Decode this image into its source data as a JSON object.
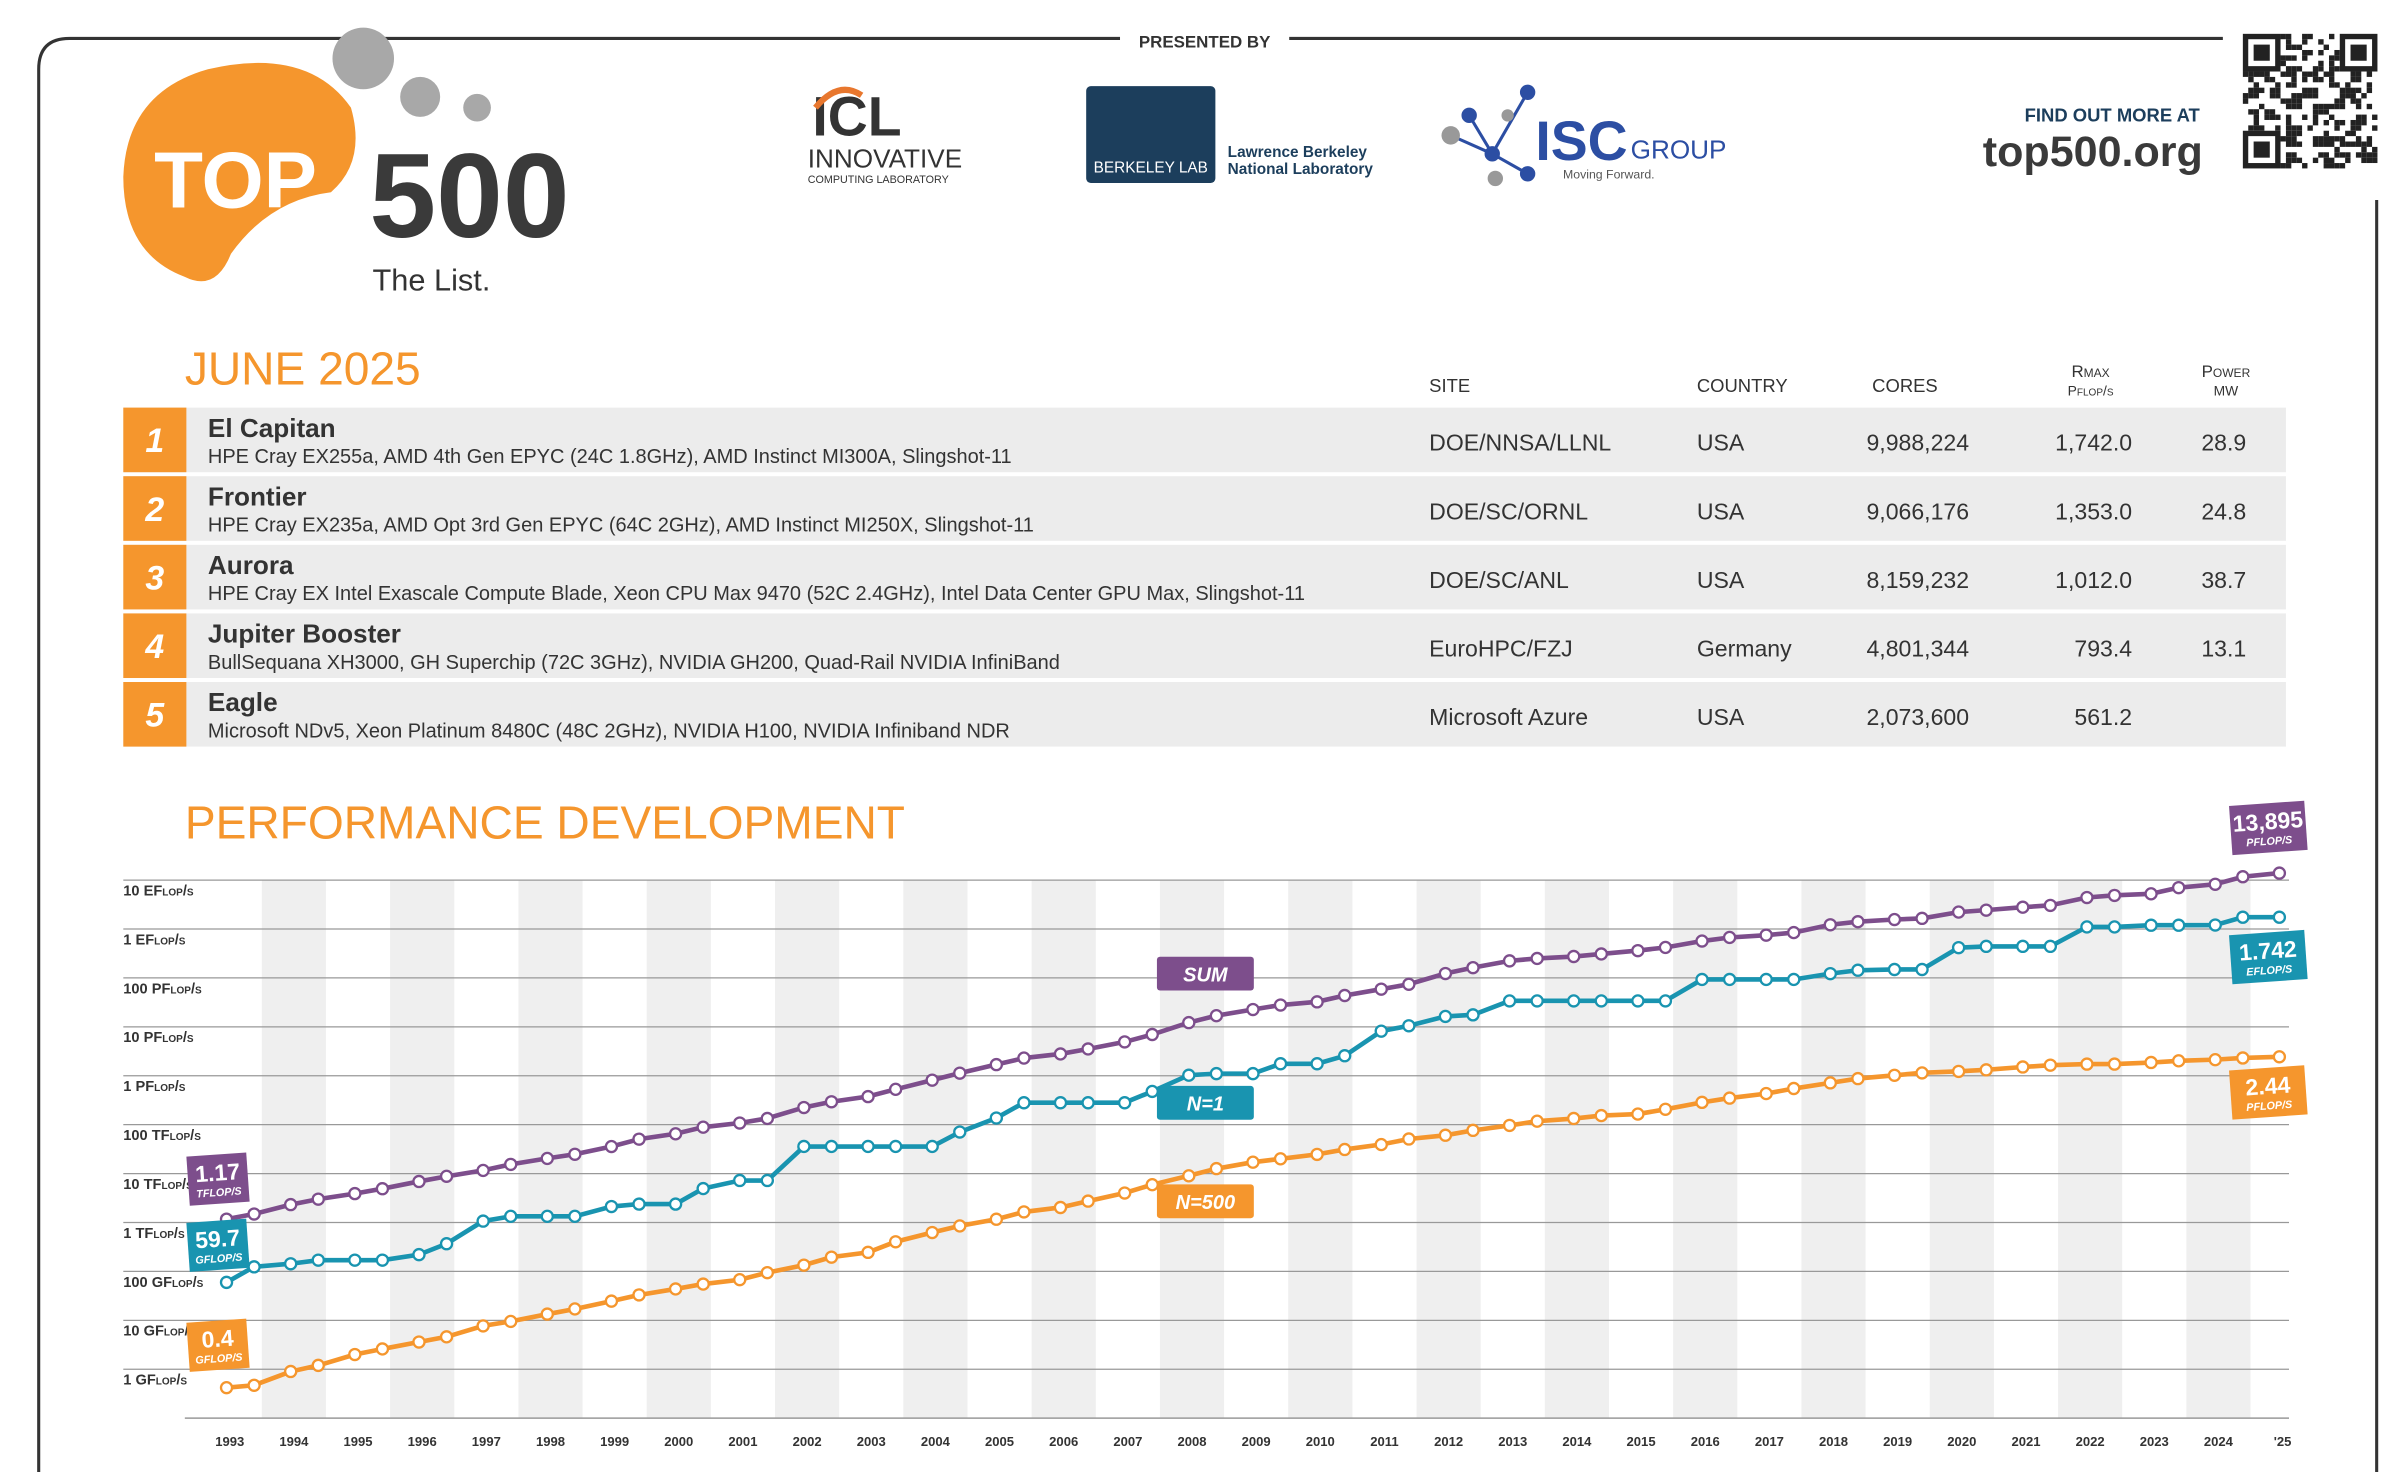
{
  "header": {
    "presented_by": "PRESENTED BY",
    "logo_top": "TOP",
    "logo_500": "500",
    "logo_tagline": "The List.",
    "icl": "ICL",
    "icl_line1": "INNOVATIVE",
    "icl_line2": "COMPUTING LABORATORY",
    "berkeley": "BERKELEY LAB",
    "berkeley_line1": "Lawrence Berkeley",
    "berkeley_line2": "National Laboratory",
    "isc": "ISC",
    "isc_group": "GROUP",
    "isc_tagline": "Moving Forward.",
    "find_out": "FIND OUT MORE AT",
    "url": "top500.org"
  },
  "list_title": "JUNE 2025",
  "table": {
    "columns": [
      {
        "label": "SITE"
      },
      {
        "label": "COUNTRY"
      },
      {
        "label": "CORES"
      },
      {
        "label": "Rmax",
        "unit": "Pflop/s"
      },
      {
        "label": "Power",
        "unit": "MW"
      }
    ],
    "rows": [
      {
        "rank": "1",
        "name": "El Capitan",
        "system": "HPE Cray EX255a, AMD 4th Gen EPYC (24C 1.8GHz), AMD Instinct MI300A, Slingshot-11",
        "site": "DOE/NNSA/LLNL",
        "country": "USA",
        "cores": "9,988,224",
        "rmax": "1,742.0",
        "power": "28.9"
      },
      {
        "rank": "2",
        "name": "Frontier",
        "system": "HPE Cray EX235a, AMD Opt 3rd Gen EPYC (64C 2GHz), AMD Instinct MI250X, Slingshot-11",
        "site": "DOE/SC/ORNL",
        "country": "USA",
        "cores": "9,066,176",
        "rmax": "1,353.0",
        "power": "24.8"
      },
      {
        "rank": "3",
        "name": "Aurora",
        "system": "HPE Cray EX Intel Exascale Compute Blade, Xeon CPU Max 9470 (52C 2.4GHz), Intel Data Center GPU Max, Slingshot-11",
        "site": "DOE/SC/ANL",
        "country": "USA",
        "cores": "8,159,232",
        "rmax": "1,012.0",
        "power": "38.7"
      },
      {
        "rank": "4",
        "name": "Jupiter Booster",
        "system": "BullSequana XH3000, GH Superchip (72C 3GHz), NVIDIA GH200, Quad-Rail NVIDIA InfiniBand",
        "site": "EuroHPC/FZJ",
        "country": "Germany",
        "cores": "4,801,344",
        "rmax": "793.4",
        "power": "13.1"
      },
      {
        "rank": "5",
        "name": "Eagle",
        "system": "Microsoft NDv5, Xeon Platinum 8480C (48C 2GHz), NVIDIA H100, NVIDIA Infiniband NDR",
        "site": "Microsoft Azure",
        "country": "USA",
        "cores": "2,073,600",
        "rmax": "561.2",
        "power": null
      }
    ]
  },
  "chart_data": {
    "type": "line",
    "title": "PERFORMANCE DEVELOPMENT",
    "log_scale": true,
    "grid": true,
    "x": [
      1993.45,
      1993.88,
      1994.45,
      1994.88,
      1995.45,
      1995.88,
      1996.45,
      1996.88,
      1997.45,
      1997.88,
      1998.45,
      1998.88,
      1999.45,
      1999.88,
      2000.45,
      2000.88,
      2001.45,
      2001.88,
      2002.45,
      2002.88,
      2003.45,
      2003.88,
      2004.45,
      2004.88,
      2005.45,
      2005.88,
      2006.45,
      2006.88,
      2007.45,
      2007.88,
      2008.45,
      2008.88,
      2009.45,
      2009.88,
      2010.45,
      2010.88,
      2011.45,
      2011.88,
      2012.45,
      2012.88,
      2013.45,
      2013.88,
      2014.45,
      2014.88,
      2015.45,
      2015.88,
      2016.45,
      2016.88,
      2017.45,
      2017.88,
      2018.45,
      2018.88,
      2019.45,
      2019.88,
      2020.45,
      2020.88,
      2021.45,
      2021.88,
      2022.45,
      2022.88,
      2023.45,
      2023.88,
      2024.45,
      2024.88,
      2025.45
    ],
    "xlim": [
      1992.8,
      2025.6
    ],
    "xticks": [
      1993,
      1994,
      1995,
      1996,
      1997,
      1998,
      1999,
      2000,
      2001,
      2002,
      2003,
      2004,
      2005,
      2006,
      2007,
      2008,
      2009,
      2010,
      2011,
      2012,
      2013,
      2014,
      2015,
      2016,
      2017,
      2018,
      2019,
      2020,
      2021,
      2022,
      2023,
      2024,
      {
        "value": 2025,
        "label": "'25"
      }
    ],
    "ylim": [
      0.1,
      20000000000
    ],
    "yticks": [
      {
        "value": 1,
        "label": "1 GFlop/s"
      },
      {
        "value": 10,
        "label": "10 GFlop/s"
      },
      {
        "value": 100,
        "label": "100 GFlop/s"
      },
      {
        "value": 1000,
        "label": "1 TFlop/s"
      },
      {
        "value": 10000,
        "label": "10 TFlop/s"
      },
      {
        "value": 100000,
        "label": "100 TFlop/s"
      },
      {
        "value": 1000000,
        "label": "1 PFlop/s"
      },
      {
        "value": 10000000,
        "label": "10 PFlop/s"
      },
      {
        "value": 100000000,
        "label": "100 PFlop/s"
      },
      {
        "value": 1000000000,
        "label": "1 EFlop/s"
      },
      {
        "value": 10000000000,
        "label": "10 EFlop/s"
      }
    ],
    "series": [
      {
        "name": "SUM",
        "color": "#7d4e8c",
        "start_label": "1.17",
        "start_unit": "TFLOP/S",
        "end_label": "13,895",
        "end_unit": "PFLOP/S",
        "values": [
          1170,
          1490,
          2320,
          3000,
          3900,
          4900,
          6900,
          8800,
          11600,
          15400,
          20400,
          24800,
          35700,
          50600,
          65000,
          88800,
          108000,
          134000,
          224000,
          294000,
          375000,
          528000,
          813000,
          1130000,
          1690000,
          2300000,
          2790000,
          3530000,
          4920000,
          6970000,
          12200000,
          16900000,
          22600000,
          27900000,
          32400000,
          43700000,
          58900000,
          74100000,
          123000000,
          162000000,
          223000000,
          250000000,
          274000000,
          309000000,
          361000000,
          420000000,
          567000000,
          672000000,
          749000000,
          845000000,
          1220000000,
          1410000000,
          1560000000,
          1650000000,
          2220000000,
          2430000000,
          2790000000,
          3040000000,
          4400000000,
          4860000000,
          5240000000,
          7010000000,
          8210000000,
          11720000000,
          13895000000
        ]
      },
      {
        "name": "N=1",
        "color": "#1994b0",
        "start_label": "59.7",
        "start_unit": "GFLOP/S",
        "end_label": "1.742",
        "end_unit": "EFLOP/S",
        "values": [
          59.7,
          124,
          143.4,
          170,
          170,
          170,
          220.4,
          368.2,
          1068,
          1338,
          1338,
          1338,
          2121,
          2379,
          2379,
          4938,
          7226,
          7226,
          35860,
          35860,
          35860,
          35860,
          35860,
          70720,
          136800,
          280600,
          280600,
          280600,
          280600,
          478200,
          1026000,
          1105000,
          1105000,
          1759000,
          1759000,
          2566000,
          8162000,
          10510000,
          16320000,
          17590000,
          33860000,
          33860000,
          33860000,
          33860000,
          33860000,
          33860000,
          93010000,
          93010000,
          93010000,
          93010000,
          122300000,
          143500000,
          148600000,
          148600000,
          415530000,
          442010000,
          442010000,
          442010000,
          1102000000,
          1102000000,
          1194000000,
          1194000000,
          1206000000,
          1742000000,
          1742000000
        ]
      },
      {
        "name": "N=500",
        "color": "#f5962d",
        "start_label": "0.4",
        "start_unit": "GFLOP/S",
        "end_label": "2.44",
        "end_unit": "PFLOP/S",
        "values": [
          0.42,
          0.47,
          0.9,
          1.2,
          2.0,
          2.6,
          3.6,
          4.6,
          7.7,
          9.5,
          13.4,
          17.1,
          24.7,
          33.1,
          43.8,
          55.1,
          67.8,
          94.3,
          134.3,
          195.8,
          245.1,
          403.4,
          624,
          850.6,
          1166,
          1646,
          2026,
          2737,
          4005,
          5929,
          9000,
          12640,
          17100,
          20050,
          24670,
          31120,
          39190,
          50940,
          60800,
          76500,
          96600,
          117800,
          133700,
          153400,
          164700,
          206300,
          286100,
          349300,
          432200,
          548700,
          715600,
          874800,
          1022000,
          1142000,
          1228000,
          1320000,
          1511000,
          1646000,
          1731000,
          1730000,
          1867000,
          2020000,
          2130000,
          2310000,
          2440000
        ]
      }
    ]
  }
}
